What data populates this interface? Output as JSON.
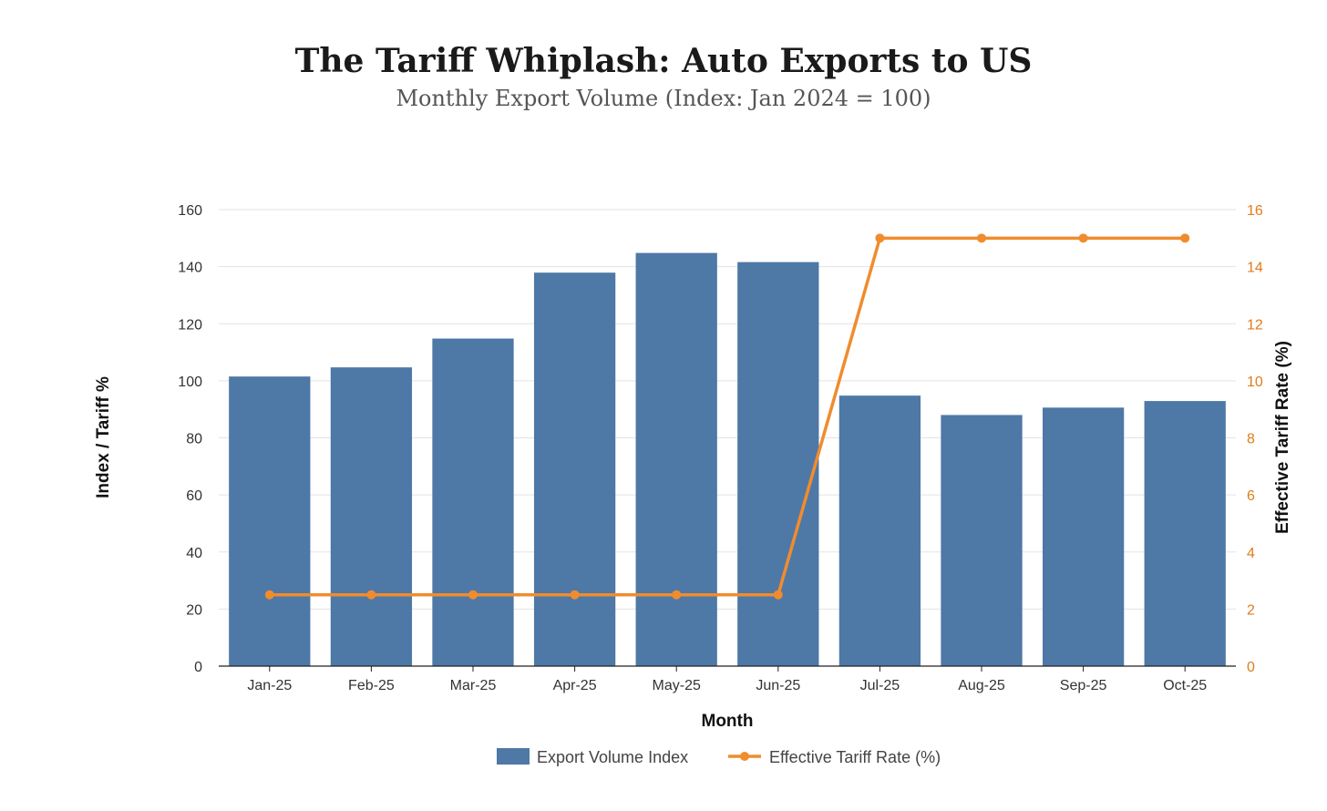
{
  "title": "The Tariff Whiplash: Auto Exports to US",
  "subtitle": "Monthly Export Volume (Index: Jan 2024 = 100)",
  "colors": {
    "bar": "#4e78a6",
    "line": "#f08c2e",
    "grid": "#e3e3e3",
    "left_tick": "#333333",
    "right_tick": "#e07c1b"
  },
  "chart_data": {
    "type": "bar",
    "categories": [
      "Jan-25",
      "Feb-25",
      "Mar-25",
      "Apr-25",
      "May-25",
      "Jun-25",
      "Jul-25",
      "Aug-25",
      "Sep-25",
      "Oct-25"
    ],
    "series": [
      {
        "name": "Export Volume Index",
        "type": "bar",
        "axis": "left",
        "values": [
          101.5,
          104.7,
          114.8,
          137.9,
          144.8,
          141.6,
          94.8,
          88.0,
          90.6,
          92.9
        ]
      },
      {
        "name": "Effective Tariff Rate (%)",
        "type": "line",
        "axis": "right",
        "values": [
          2.5,
          2.5,
          2.5,
          2.5,
          2.5,
          2.5,
          15,
          15,
          15,
          15
        ]
      }
    ],
    "xlabel": "Month",
    "ylabel": "Index / Tariff %",
    "y2label": "Effective Tariff Rate (%)",
    "ylim": [
      0,
      160
    ],
    "y2lim": [
      0,
      16
    ],
    "yticks": [
      0,
      20,
      40,
      60,
      80,
      100,
      120,
      140,
      160
    ],
    "y2ticks": [
      0,
      2,
      4,
      6,
      8,
      10,
      12,
      14,
      16
    ],
    "grid": true,
    "legend": "bottom-center"
  }
}
